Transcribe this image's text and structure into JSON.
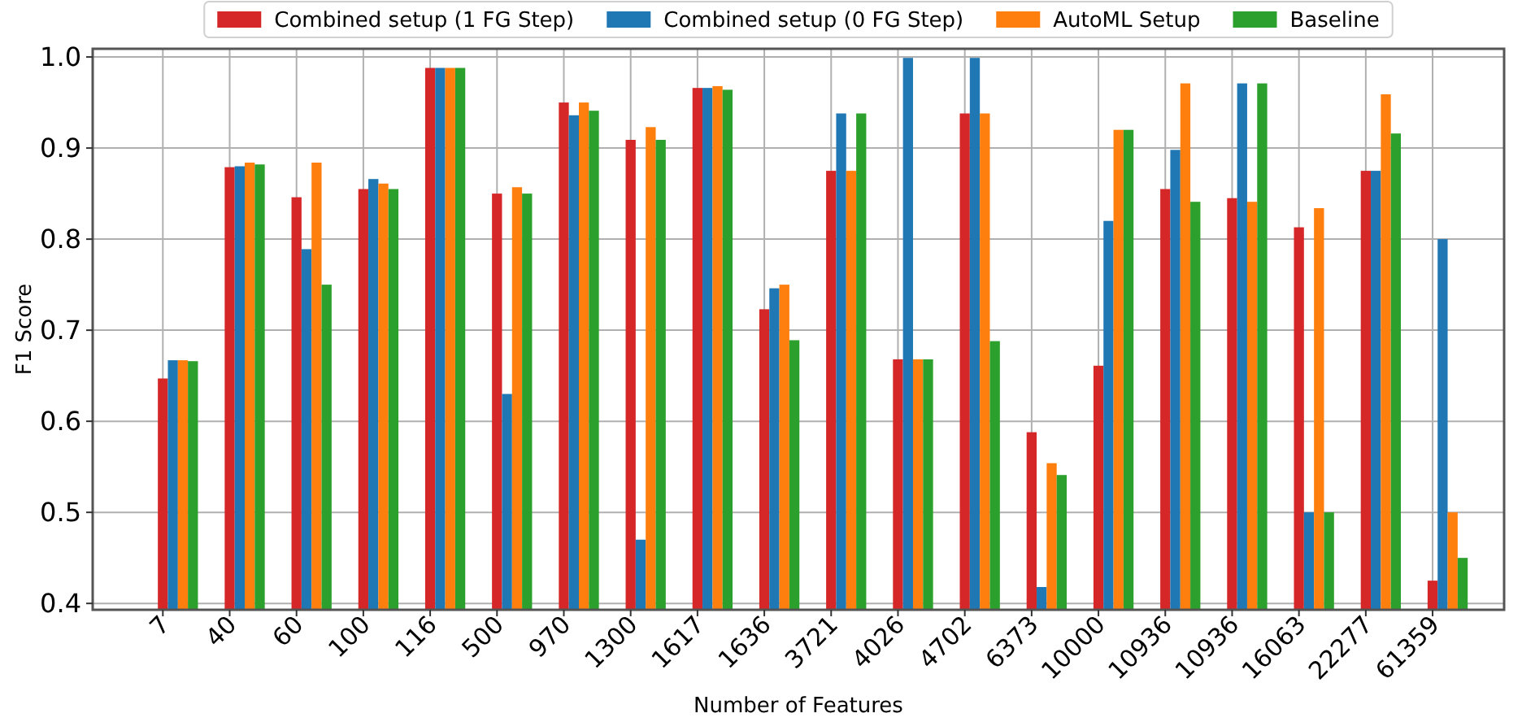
{
  "chart_data": {
    "type": "bar",
    "xlabel": "Number of Features",
    "ylabel": "F1 Score",
    "categories": [
      "7",
      "40",
      "60",
      "100",
      "116",
      "500",
      "970",
      "1300",
      "1617",
      "1636",
      "3721",
      "4026",
      "4702",
      "6373",
      "10000",
      "10936",
      "10936",
      "16063",
      "22277",
      "61359"
    ],
    "series": [
      {
        "name": "Combined setup (1 FG Step)",
        "color": "#d62728",
        "values": [
          0.647,
          0.879,
          0.846,
          0.855,
          0.988,
          0.85,
          0.95,
          0.909,
          0.966,
          0.723,
          0.875,
          0.668,
          0.938,
          0.588,
          0.661,
          0.855,
          0.845,
          0.813,
          0.875,
          0.425
        ]
      },
      {
        "name": "Combined setup (0 FG Step)",
        "color": "#1f77b4",
        "values": [
          0.667,
          0.88,
          0.789,
          0.866,
          0.988,
          0.63,
          0.936,
          0.47,
          0.966,
          0.746,
          0.938,
          0.999,
          0.999,
          0.418,
          0.82,
          0.898,
          0.971,
          0.5,
          0.875,
          0.8
        ]
      },
      {
        "name": "AutoML Setup",
        "color": "#ff7f0e",
        "values": [
          0.667,
          0.884,
          0.884,
          0.861,
          0.988,
          0.857,
          0.95,
          0.923,
          0.968,
          0.75,
          0.875,
          0.668,
          0.938,
          0.554,
          0.92,
          0.971,
          0.841,
          0.834,
          0.959,
          0.5
        ]
      },
      {
        "name": "Baseline",
        "color": "#2ca02c",
        "values": [
          0.666,
          0.882,
          0.75,
          0.855,
          0.988,
          0.85,
          0.941,
          0.909,
          0.964,
          0.689,
          0.938,
          0.668,
          0.688,
          0.541,
          0.92,
          0.841,
          0.971,
          0.5,
          0.916,
          0.45
        ]
      }
    ],
    "ylim": [
      0.393,
      1.009
    ],
    "yticks": [
      0.4,
      0.5,
      0.6,
      0.7,
      0.8,
      0.9,
      {
        "value": 1.0,
        "label": "1.0"
      }
    ],
    "grid": true,
    "legend": "top"
  }
}
